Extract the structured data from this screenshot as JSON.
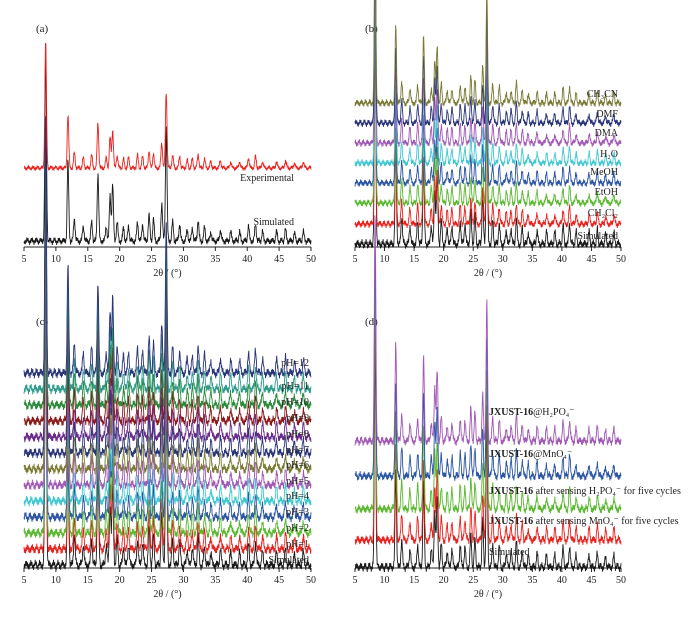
{
  "colors": {
    "black": "#1a1a1a",
    "red": "#e8231f",
    "green": "#5bb832",
    "blue": "#2c55a3",
    "cyan": "#3fc8d0",
    "purple": "#a05ab4",
    "navy": "#2a3578",
    "olive": "#7a7a34",
    "teal": "#2e9a8c",
    "darkred": "#8a1a1a",
    "violet": "#6a2a8a",
    "orange": "#e07a1e",
    "darkgreen": "#2a8a3a"
  },
  "chart_data": [
    {
      "panel": "(a)",
      "type": "line",
      "xlabel": "2θ / (°)",
      "xlim": [
        5,
        50
      ],
      "xticks": [
        5,
        10,
        15,
        20,
        25,
        30,
        35,
        40,
        45,
        50
      ],
      "series": [
        {
          "name": "Simulated",
          "color": "black"
        },
        {
          "name": "Experimental",
          "color": "red"
        }
      ]
    },
    {
      "panel": "(b)",
      "type": "line",
      "xlabel": "2θ / (°)",
      "xlim": [
        5,
        50
      ],
      "xticks": [
        5,
        10,
        15,
        20,
        25,
        30,
        35,
        40,
        45,
        50
      ],
      "series": [
        {
          "name": "Simulated",
          "color": "black"
        },
        {
          "name": "CH2Cl2",
          "color": "red"
        },
        {
          "name": "EtOH",
          "color": "green"
        },
        {
          "name": "MeOH",
          "color": "blue"
        },
        {
          "name": "H2O",
          "color": "cyan"
        },
        {
          "name": "DMA",
          "color": "purple"
        },
        {
          "name": "DMF",
          "color": "navy"
        },
        {
          "name": "CH3CN",
          "color": "olive"
        }
      ]
    },
    {
      "panel": "(c)",
      "type": "line",
      "xlabel": "2θ / (°)",
      "xlim": [
        5,
        50
      ],
      "xticks": [
        5,
        10,
        15,
        20,
        25,
        30,
        35,
        40,
        45,
        50
      ],
      "series": [
        {
          "name": "Simulated",
          "color": "black"
        },
        {
          "name": "pH=1",
          "color": "red"
        },
        {
          "name": "pH=2",
          "color": "green"
        },
        {
          "name": "pH=3",
          "color": "blue"
        },
        {
          "name": "pH=4",
          "color": "cyan"
        },
        {
          "name": "pH=5",
          "color": "purple"
        },
        {
          "name": "pH=6",
          "color": "olive"
        },
        {
          "name": "pH=7",
          "color": "navy"
        },
        {
          "name": "pH=8",
          "color": "violet"
        },
        {
          "name": "pH=9",
          "color": "darkred"
        },
        {
          "name": "pH=10",
          "color": "darkgreen"
        },
        {
          "name": "pH=11",
          "color": "teal"
        },
        {
          "name": "pH=12",
          "color": "navy"
        }
      ]
    },
    {
      "panel": "(d)",
      "type": "line",
      "xlabel": "2θ / (°)",
      "xlim": [
        5,
        50
      ],
      "xticks": [
        5,
        10,
        15,
        20,
        25,
        30,
        35,
        40,
        45,
        50
      ],
      "series": [
        {
          "name": "Simulated",
          "color": "black"
        },
        {
          "name": "JXUST-16 after sensing MnO4− for five cycles",
          "color": "red"
        },
        {
          "name": "JXUST-16 after sensing H2PO4− for five cycles",
          "color": "green"
        },
        {
          "name": "JXUST-16@MnO4−",
          "color": "blue"
        },
        {
          "name": "JXUST-16@H2PO4−",
          "color": "purple"
        }
      ]
    }
  ],
  "peaks": [
    [
      8.4,
      1.0
    ],
    [
      11.9,
      0.42
    ],
    [
      12.9,
      0.12
    ],
    [
      14.3,
      0.08
    ],
    [
      15.6,
      0.1
    ],
    [
      16.6,
      0.36
    ],
    [
      17.9,
      0.08
    ],
    [
      18.5,
      0.24
    ],
    [
      18.9,
      0.3
    ],
    [
      19.6,
      0.1
    ],
    [
      20.6,
      0.07
    ],
    [
      21.4,
      0.08
    ],
    [
      22.8,
      0.1
    ],
    [
      23.6,
      0.09
    ],
    [
      24.6,
      0.14
    ],
    [
      25.3,
      0.12
    ],
    [
      26.6,
      0.2
    ],
    [
      27.3,
      0.6
    ],
    [
      28.3,
      0.1
    ],
    [
      29.4,
      0.09
    ],
    [
      30.6,
      0.06
    ],
    [
      31.4,
      0.07
    ],
    [
      32.3,
      0.11
    ],
    [
      33.3,
      0.07
    ],
    [
      34.3,
      0.05
    ],
    [
      35.8,
      0.06
    ],
    [
      37.4,
      0.05
    ],
    [
      38.8,
      0.05
    ],
    [
      40.2,
      0.08
    ],
    [
      41.3,
      0.09
    ],
    [
      42.4,
      0.05
    ],
    [
      44.6,
      0.05
    ],
    [
      46.0,
      0.06
    ],
    [
      47.4,
      0.04
    ],
    [
      48.8,
      0.05
    ]
  ]
}
